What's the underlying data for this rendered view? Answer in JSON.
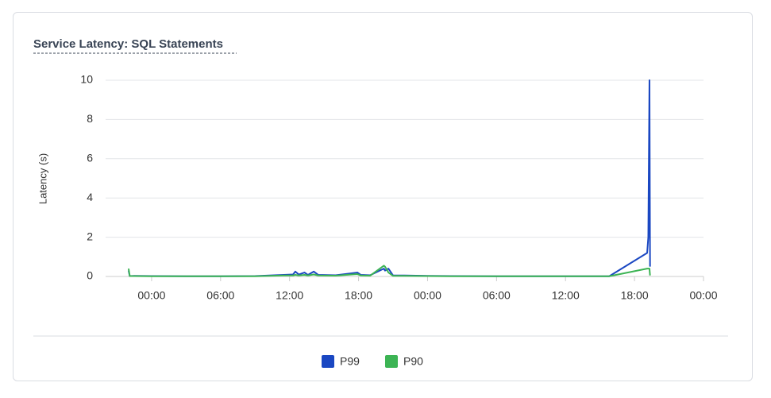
{
  "chart_data": {
    "type": "line",
    "title": "Service Latency: SQL Statements",
    "y_label": "Latency (s)",
    "x": [
      -2.0,
      -1.9,
      -1.5,
      0,
      3,
      6,
      9,
      11.5,
      12.3,
      12.5,
      12.8,
      13.3,
      13.6,
      14.1,
      14.5,
      16,
      17.9,
      18.2,
      19,
      20.2,
      20.3,
      20.6,
      21,
      22,
      24,
      26,
      30,
      36,
      39.8,
      43.1,
      43.2,
      43.3,
      43.35
    ],
    "series": [
      {
        "name": "P99",
        "color": "#1a47c2",
        "values": [
          0.3,
          0.02,
          0.03,
          0.02,
          0.01,
          0.01,
          0.02,
          0.08,
          0.1,
          0.25,
          0.1,
          0.2,
          0.08,
          0.25,
          0.08,
          0.06,
          0.2,
          0.08,
          0.06,
          0.4,
          0.3,
          0.4,
          0.05,
          0.05,
          0.03,
          0.02,
          0.01,
          0.01,
          0.01,
          1.2,
          2,
          10,
          0.5
        ]
      },
      {
        "name": "P90",
        "color": "#3cb454",
        "values": [
          0.4,
          0.02,
          0.02,
          0.01,
          0.01,
          0.01,
          0.01,
          0.05,
          0.05,
          0.08,
          0.05,
          0.08,
          0.05,
          0.1,
          0.05,
          0.04,
          0.12,
          0.05,
          0.04,
          0.55,
          0.5,
          0.2,
          0.03,
          0.03,
          0.02,
          0.01,
          0.01,
          0.01,
          0.01,
          0.4,
          0.4,
          0.4,
          0.05
        ]
      }
    ],
    "xlim": [
      -4,
      48
    ],
    "xticks": [
      {
        "value": 0,
        "label": "00:00"
      },
      {
        "value": 6,
        "label": "06:00"
      },
      {
        "value": 12,
        "label": "12:00"
      },
      {
        "value": 18,
        "label": "18:00"
      },
      {
        "value": 24,
        "label": "00:00"
      },
      {
        "value": 30,
        "label": "06:00"
      },
      {
        "value": 36,
        "label": "12:00"
      },
      {
        "value": 42,
        "label": "18:00"
      },
      {
        "value": 48,
        "label": "00:00"
      }
    ],
    "ylim": [
      0,
      10
    ],
    "yticks": [
      0,
      2,
      4,
      6,
      8,
      10
    ],
    "grid": true
  }
}
